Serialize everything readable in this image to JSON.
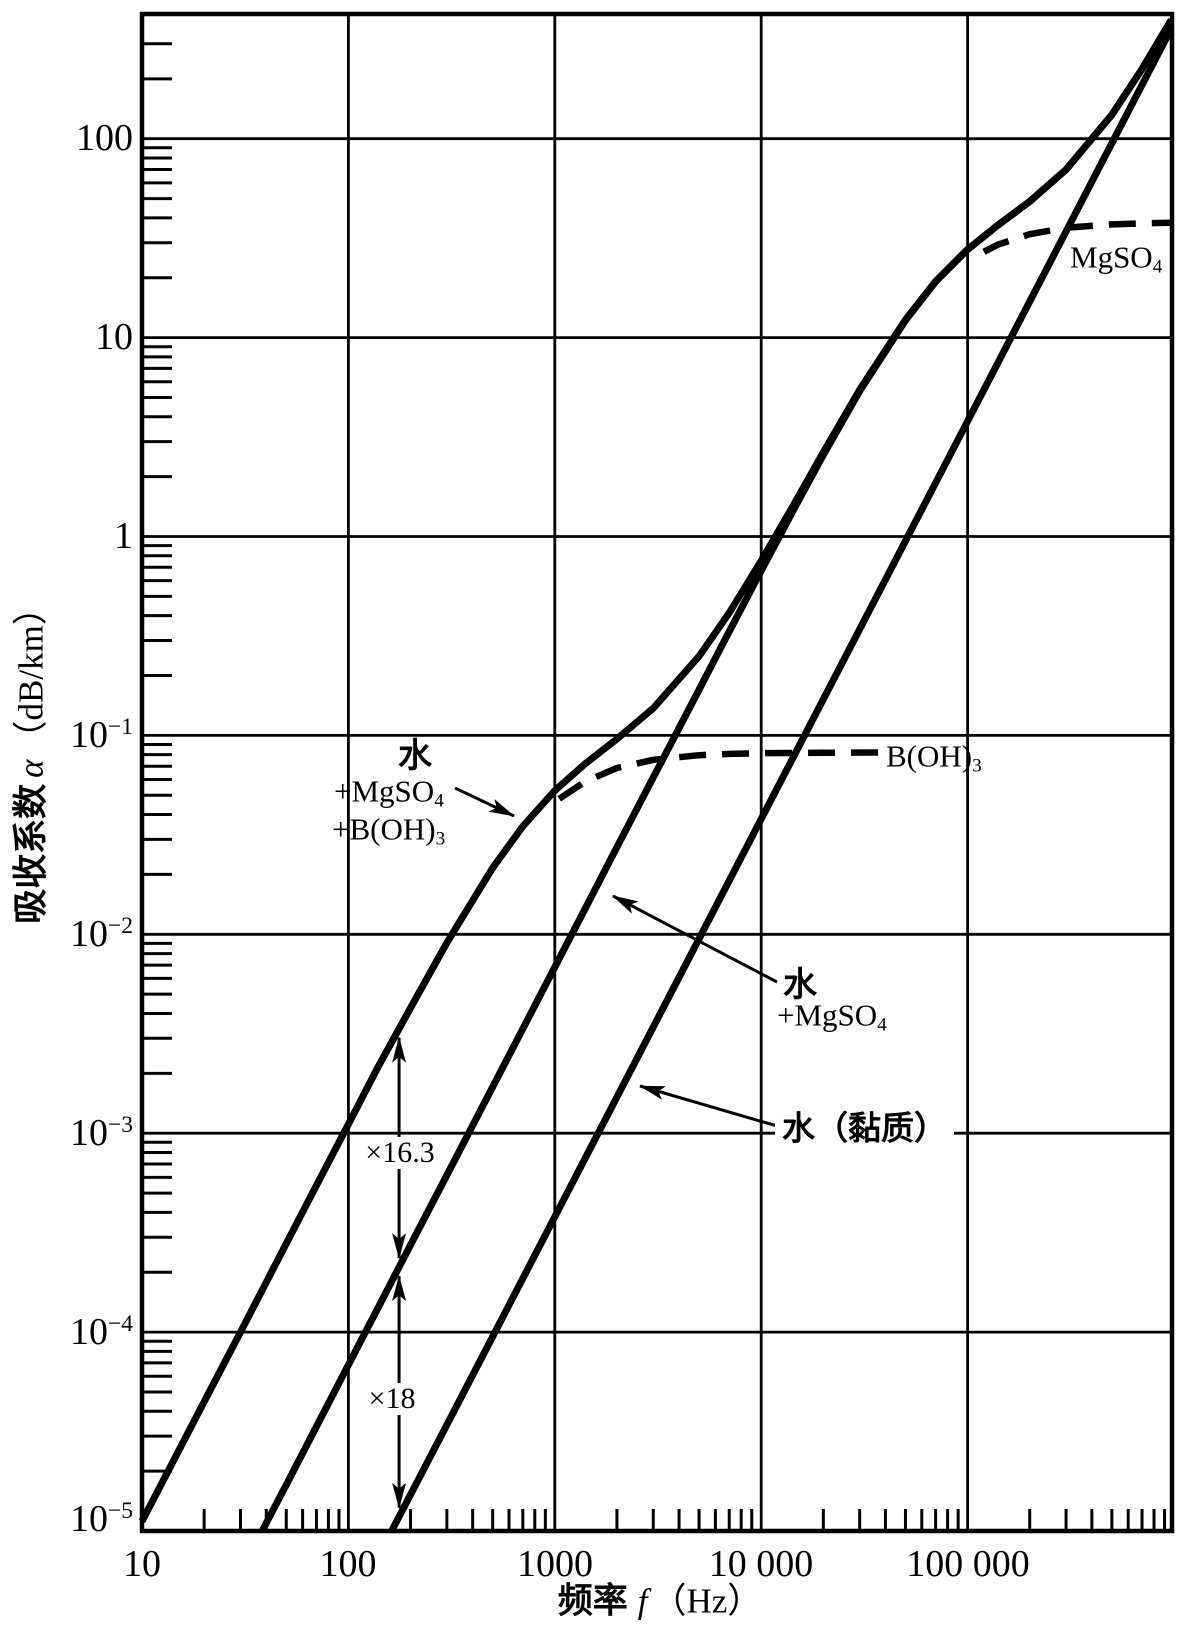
{
  "figure": {
    "background": "#ffffff",
    "ink_color": "#000000",
    "x_axis": {
      "scale": "log",
      "min_hz": 10,
      "max_hz": 970000,
      "title": {
        "cjk": "频率",
        "var": "f",
        "unit": "（Hz）"
      },
      "ticks": [
        {
          "label": "10",
          "hz": 10
        },
        {
          "label": "100",
          "hz": 100
        },
        {
          "label": "1000",
          "hz": 1000
        },
        {
          "label": "10 000",
          "hz": 10000
        },
        {
          "label": "100 000",
          "hz": 100000
        }
      ]
    },
    "y_axis": {
      "scale": "log",
      "min": 1e-05,
      "max": 423,
      "title": {
        "cjk": "吸收系数",
        "var": "α",
        "unit": "（dB/km）"
      },
      "ticks": [
        {
          "base": "100",
          "exp": "",
          "value": 100
        },
        {
          "base": "10",
          "exp": "",
          "value": 10
        },
        {
          "base": "1",
          "exp": "",
          "value": 1
        },
        {
          "base": "10",
          "exp": "−1",
          "value": 0.1
        },
        {
          "base": "10",
          "exp": "−2",
          "value": 0.01
        },
        {
          "base": "10",
          "exp": "−3",
          "value": 0.001
        },
        {
          "base": "10",
          "exp": "−4",
          "value": 0.0001
        },
        {
          "base": "10",
          "exp": "−5",
          "value": 1e-05
        }
      ]
    },
    "curve_labels": {
      "seawater": {
        "l1": "水",
        "l2": {
          "main": "+MgSO",
          "sub": "4"
        },
        "l3": {
          "main": "+B(OH)",
          "sub": "3"
        }
      },
      "water_mgso4": {
        "l1": "水",
        "l2": {
          "main": "+MgSO",
          "sub": "4"
        }
      },
      "water": "水（黏质）",
      "mgso4": {
        "main": "MgSO",
        "sub": "4"
      },
      "boh3": {
        "main": "B(OH)",
        "sub": "3"
      }
    },
    "annotations": {
      "ratio_upper": "×16.3",
      "ratio_lower": "×18"
    }
  },
  "chart_data": {
    "type": "line",
    "x_unit": "Hz",
    "y_unit": "dB/km",
    "x_range": [
      10,
      970000
    ],
    "y_range": [
      1e-05,
      423
    ],
    "grid": "both-log-decades",
    "series": [
      {
        "id": "seawater-total",
        "label": "水+MgSO4+B(OH)3",
        "style": "solid",
        "points": [
          [
            10,
            1.12e-05
          ],
          [
            14,
            2.19e-05
          ],
          [
            20,
            4.46e-05
          ],
          [
            30,
            0.0001
          ],
          [
            50,
            0.000279
          ],
          [
            70,
            0.000546
          ],
          [
            100,
            0.00111
          ],
          [
            140,
            0.00218
          ],
          [
            200,
            0.00426
          ],
          [
            300,
            0.00907
          ],
          [
            500,
            0.0216
          ],
          [
            700,
            0.0349
          ],
          [
            1000,
            0.0528
          ],
          [
            1400,
            0.0719
          ],
          [
            2000,
            0.0959
          ],
          [
            3000,
            0.137
          ],
          [
            5000,
            0.25
          ],
          [
            7000,
            0.413
          ],
          [
            10000,
            0.755
          ],
          [
            14000,
            1.38
          ],
          [
            20000,
            2.65
          ],
          [
            30000,
            5.47
          ],
          [
            50000,
            12.3
          ],
          [
            70000,
            19.2
          ],
          [
            100000,
            27.8
          ],
          [
            140000,
            36.8
          ],
          [
            200000,
            48.4
          ],
          [
            300000,
            70.0
          ],
          [
            500000,
            132
          ],
          [
            700000,
            224
          ],
          [
            970000,
            396
          ]
        ]
      },
      {
        "id": "water-mgso4",
        "label": "水+MgSO4",
        "style": "solid",
        "points": [
          [
            38.2,
            1e-05
          ],
          [
            50,
            1.71e-05
          ],
          [
            70,
            3.35e-05
          ],
          [
            100,
            6.84e-05
          ],
          [
            140,
            0.000134
          ],
          [
            200,
            0.000274
          ],
          [
            300,
            0.000616
          ],
          [
            500,
            0.00171
          ],
          [
            700,
            0.00335
          ],
          [
            1000,
            0.00684
          ],
          [
            1400,
            0.0134
          ],
          [
            2000,
            0.0274
          ],
          [
            3000,
            0.0615
          ],
          [
            5000,
            0.17
          ],
          [
            7000,
            0.333
          ],
          [
            10000,
            0.673
          ],
          [
            14000,
            1.3
          ],
          [
            20000,
            2.57
          ],
          [
            30000,
            5.39
          ],
          [
            50000,
            12.2
          ],
          [
            70000,
            19.1
          ],
          [
            100000,
            27.7
          ],
          [
            140000,
            36.7
          ],
          [
            200000,
            48.3
          ],
          [
            300000,
            69.9
          ],
          [
            500000,
            132
          ],
          [
            700000,
            224
          ],
          [
            970000,
            395
          ]
        ]
      },
      {
        "id": "water-viscous",
        "label": "水（黏质）",
        "style": "solid",
        "points": [
          [
            162,
            1e-05
          ],
          [
            300,
            3.42e-05
          ],
          [
            1000,
            0.00038
          ],
          [
            3000,
            0.00342
          ],
          [
            10000,
            0.038
          ],
          [
            30000,
            0.342
          ],
          [
            100000,
            3.8
          ],
          [
            300000,
            34.2
          ],
          [
            970000,
            358
          ]
        ]
      },
      {
        "id": "mgso4-relaxation",
        "label": "MgSO4",
        "style": "dashed",
        "points": [
          [
            120000,
            27.0
          ],
          [
            140000,
            29.3
          ],
          [
            200000,
            33.1
          ],
          [
            300000,
            35.7
          ],
          [
            500000,
            37.1
          ],
          [
            700000,
            37.5
          ],
          [
            970000,
            37.8
          ]
        ]
      },
      {
        "id": "boh3-relaxation",
        "label": "B(OH)3",
        "style": "dashed",
        "points": [
          [
            1050,
            0.048
          ],
          [
            1400,
            0.0585
          ],
          [
            2000,
            0.0686
          ],
          [
            3000,
            0.0754
          ],
          [
            5000,
            0.0795
          ],
          [
            7000,
            0.0807
          ],
          [
            10000,
            0.0814
          ],
          [
            20000,
            0.0818
          ],
          [
            39000,
            0.082
          ]
        ]
      }
    ],
    "annotations": [
      {
        "id": "ratio-upper",
        "text": "×16.3",
        "x_hz": 176,
        "between": [
          "seawater-total",
          "water-mgso4"
        ]
      },
      {
        "id": "ratio-lower",
        "text": "×18",
        "x_hz": 176,
        "between": [
          "water-mgso4",
          "water-viscous"
        ]
      }
    ]
  }
}
